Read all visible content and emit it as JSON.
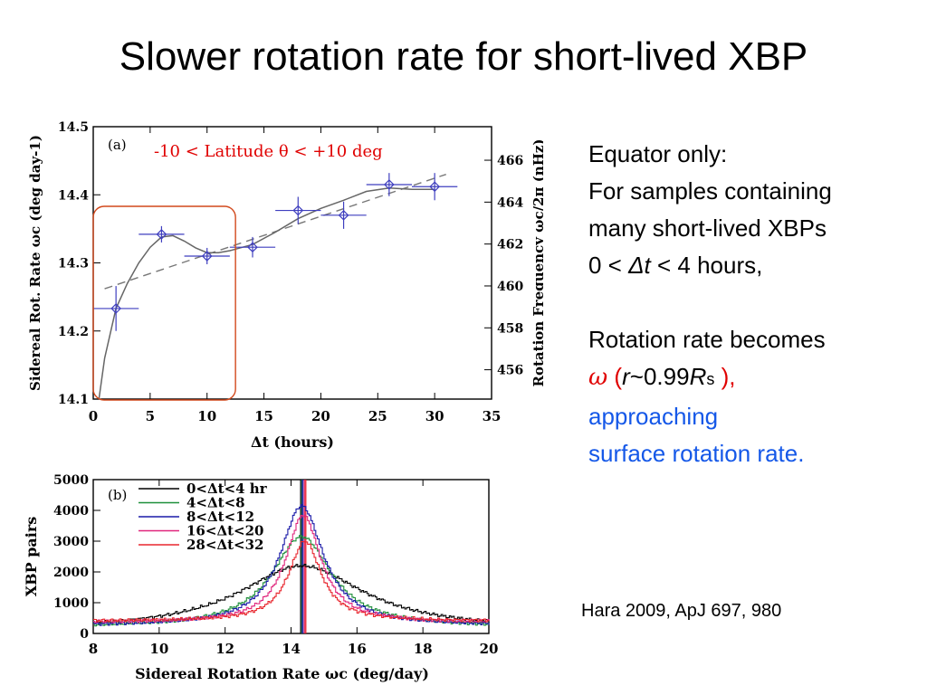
{
  "slide": {
    "title": "Slower rotation rate for short-lived XBP",
    "notes": {
      "line1": "Equator only:",
      "line2": "For samples containing",
      "line3": "many short-lived XBPs",
      "line4_a": "0 < ",
      "line4_dt": "Δt",
      "line4_b": " < 4 hours,",
      "line5": "Rotation rate becomes",
      "omega": "ω",
      "paren_open": " (",
      "r": "r",
      "approx": "~0.99",
      "R": "R",
      "s": "s",
      "paren_close": " ),",
      "line7": "approaching",
      "line8": "surface rotation rate."
    },
    "citation": "Hara 2009,  ApJ 697, 980"
  },
  "colors": {
    "notes_red": "#e00000",
    "notes_blue": "#1558e8",
    "data_points": "#3f3fbf",
    "highlight_box": "#d2491c",
    "panel_a_annotation": "#e00000"
  },
  "chart_data": [
    {
      "type": "scatter",
      "panel": "(a)",
      "annotation": "-10 <   Latitude θ  < +10 deg",
      "xlabel": "Δt (hours)",
      "ylabel": "Sidereal Rot. Rate ωc (deg day-1)",
      "y2label": "Rotation Frequency ωc/2π (nHz)",
      "xlim": [
        0,
        35
      ],
      "ylim": [
        14.1,
        14.5
      ],
      "y2lim": [
        454.6,
        467.6
      ],
      "xticks": [
        "0",
        "5",
        "10",
        "15",
        "20",
        "25",
        "30",
        "35"
      ],
      "yticks": [
        "14.1",
        "14.2",
        "14.3",
        "14.4",
        "14.5"
      ],
      "y2ticks": [
        "456",
        "458",
        "460",
        "462",
        "464",
        "466"
      ],
      "grid": false,
      "points": [
        {
          "x": 2,
          "y": 14.233,
          "xerr": 2,
          "yerr": 0.033
        },
        {
          "x": 6,
          "y": 14.342,
          "xerr": 2,
          "yerr": 0.012
        },
        {
          "x": 10,
          "y": 14.31,
          "xerr": 2,
          "yerr": 0.012
        },
        {
          "x": 14,
          "y": 14.323,
          "xerr": 2,
          "yerr": 0.015
        },
        {
          "x": 18,
          "y": 14.377,
          "xerr": 2,
          "yerr": 0.02
        },
        {
          "x": 22,
          "y": 14.37,
          "xerr": 2,
          "yerr": 0.02
        },
        {
          "x": 26,
          "y": 14.415,
          "xerr": 2,
          "yerr": 0.017
        },
        {
          "x": 30,
          "y": 14.412,
          "xerr": 2,
          "yerr": 0.02
        }
      ],
      "smooth_fit": {
        "x": [
          0.5,
          1,
          2,
          3,
          4,
          5,
          6,
          7,
          8,
          9,
          10,
          11,
          12,
          14,
          16,
          18,
          20,
          22,
          24,
          26,
          28,
          30
        ],
        "y": [
          14.1,
          14.16,
          14.233,
          14.27,
          14.3,
          14.323,
          14.338,
          14.34,
          14.332,
          14.322,
          14.315,
          14.315,
          14.318,
          14.327,
          14.345,
          14.365,
          14.38,
          14.392,
          14.405,
          14.41,
          14.408,
          14.408
        ]
      },
      "linear_fit": {
        "x": [
          1,
          31
        ],
        "y": [
          14.262,
          14.43
        ]
      },
      "highlight_x_range": [
        0,
        12.5
      ]
    },
    {
      "type": "line",
      "panel": "(b)",
      "xlabel": "Sidereal Rotation Rate ωc (deg/day)",
      "ylabel": "XBP pairs",
      "xlim": [
        8,
        20
      ],
      "ylim": [
        0,
        5000
      ],
      "xticks": [
        "8",
        "10",
        "12",
        "14",
        "16",
        "18",
        "20"
      ],
      "yticks": [
        "0",
        "1000",
        "2000",
        "3000",
        "4000",
        "5000"
      ],
      "grid": false,
      "legend": "top-left",
      "series": [
        {
          "name": "0<Δt<4 hr",
          "color": "#000000",
          "peak_x": 14.3,
          "amplitude": 2100,
          "baseline": 100,
          "width": 2.3
        },
        {
          "name": "4<Δt<8",
          "color": "#1e8f3a",
          "peak_x": 14.3,
          "amplitude": 2950,
          "baseline": 200,
          "width": 1.1
        },
        {
          "name": "8<Δt<12",
          "color": "#1a1aa8",
          "peak_x": 14.3,
          "amplitude": 3900,
          "baseline": 250,
          "width": 0.8
        },
        {
          "name": "16<Δt<20",
          "color": "#e0257c",
          "peak_x": 14.35,
          "amplitude": 3500,
          "baseline": 350,
          "width": 0.65
        },
        {
          "name": "28<Δt<32",
          "color": "#e8262e",
          "peak_x": 14.4,
          "amplitude": 2600,
          "baseline": 400,
          "width": 0.6
        }
      ],
      "vertical_lines": [
        {
          "x": 14.3,
          "color": "#000000"
        },
        {
          "x": 14.33,
          "color": "#1e8f3a"
        },
        {
          "x": 14.35,
          "color": "#1a1aa8"
        },
        {
          "x": 14.41,
          "color": "#e0257c"
        },
        {
          "x": 14.44,
          "color": "#e8262e"
        }
      ]
    }
  ]
}
